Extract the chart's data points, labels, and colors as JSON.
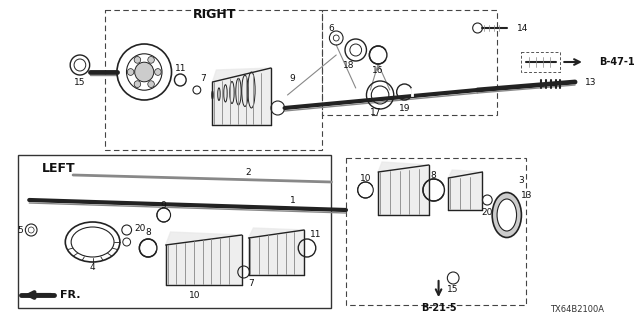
{
  "bg_color": "#ffffff",
  "fig_width": 6.4,
  "fig_height": 3.2,
  "dpi": 100,
  "right_label": "RIGHT",
  "left_label": "LEFT",
  "ref_b471": "B-47-1",
  "ref_b215": "B-21-5",
  "diagram_code": "TX64B2100A",
  "fr_label": "FR.",
  "line_color": "#222222",
  "gray": "#888888",
  "light_gray": "#cccccc"
}
